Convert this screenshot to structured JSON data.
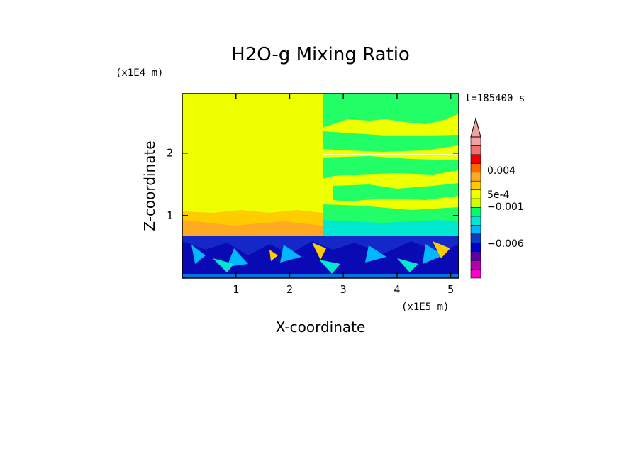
{
  "chart_data": {
    "type": "heatmap",
    "title": "H2O-g Mixing Ratio",
    "xlabel": "X-coordinate",
    "ylabel": "Z-coordinate",
    "x_unit": "(x1E5 m)",
    "y_unit": "(x1E4 m)",
    "time_label": "t=185400 s",
    "xlim": [
      0,
      5.15
    ],
    "ylim": [
      0,
      2.95
    ],
    "x_ticks": [
      1,
      2,
      3,
      4,
      5
    ],
    "y_ticks": [
      1,
      2
    ],
    "x_tick_labels": [
      "1",
      "2",
      "3",
      "4",
      "5"
    ],
    "y_tick_labels": [
      "1",
      "2"
    ],
    "colorbar": {
      "extend": "max",
      "labels": [
        {
          "text": "0.004",
          "value": 0.004
        },
        {
          "text": "5e-4",
          "value": 0.0005
        },
        {
          "text": "−0.001",
          "value": -0.001
        },
        {
          "text": "−0.006",
          "value": -0.006
        }
      ],
      "colors": [
        "#ff00cc",
        "#b000b0",
        "#5a00a0",
        "#0000cc",
        "#0a3cc8",
        "#00b8ff",
        "#00e8d0",
        "#00ff66",
        "#ccff00",
        "#eeff00",
        "#ffcc00",
        "#ffaa22",
        "#ff6600",
        "#ee0000",
        "#f07070",
        "#f4a0a0"
      ]
    },
    "regions": [
      {
        "name": "upper-left-uniform",
        "x": [
          0,
          2.6
        ],
        "z": [
          1.0,
          2.95
        ],
        "color": "#eeff00"
      },
      {
        "name": "upper-right-banded",
        "x": [
          2.6,
          5.15
        ],
        "z": [
          0.75,
          2.95
        ],
        "colors": [
          "#eeff00",
          "#22ff66",
          "#00e8d0"
        ]
      },
      {
        "name": "mid-layer-orange",
        "x": [
          0,
          2.6
        ],
        "z": [
          0.7,
          1.0
        ],
        "color": "#ffcc00"
      },
      {
        "name": "boundary-layer",
        "x": [
          0,
          5.15
        ],
        "z": [
          0,
          0.7
        ],
        "colors": [
          "#0a1ec8",
          "#1e3cd2",
          "#00b8ff",
          "#ffcc00"
        ]
      }
    ]
  }
}
